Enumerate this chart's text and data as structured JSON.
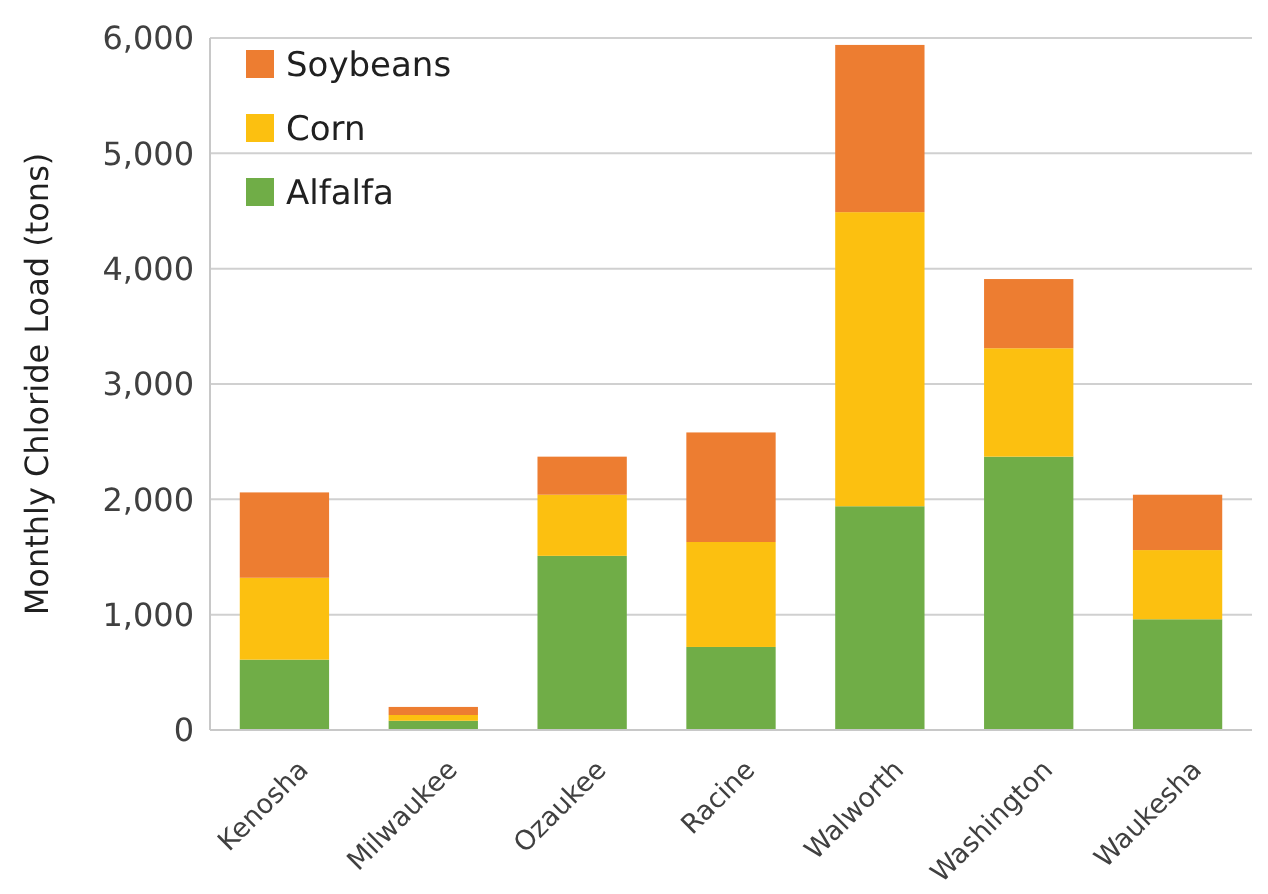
{
  "chart_data": {
    "type": "bar",
    "stacked": true,
    "ylabel": "Monthly Chloride Load (tons)",
    "categories": [
      "Kenosha",
      "Milwaukee",
      "Ozaukee",
      "Racine",
      "Walworth",
      "Washington",
      "Waukesha"
    ],
    "series": [
      {
        "name": "Alfalfa",
        "color": "#70ad47",
        "values": [
          610,
          80,
          1510,
          720,
          1940,
          2370,
          960
        ]
      },
      {
        "name": "Corn",
        "color": "#fcc010",
        "values": [
          710,
          50,
          530,
          910,
          2550,
          940,
          600
        ]
      },
      {
        "name": "Soybeans",
        "color": "#ed7d31",
        "values": [
          740,
          70,
          330,
          950,
          1450,
          600,
          480
        ]
      }
    ],
    "ylim": [
      0,
      6000
    ],
    "yticks": [
      {
        "value": 0,
        "label": "0"
      },
      {
        "value": 1000,
        "label": "1,000"
      },
      {
        "value": 2000,
        "label": "2,000"
      },
      {
        "value": 3000,
        "label": "3,000"
      },
      {
        "value": 4000,
        "label": "4,000"
      },
      {
        "value": 5000,
        "label": "5,000"
      },
      {
        "value": 6000,
        "label": "6,000"
      }
    ],
    "grid": "y",
    "legend": "top left"
  }
}
